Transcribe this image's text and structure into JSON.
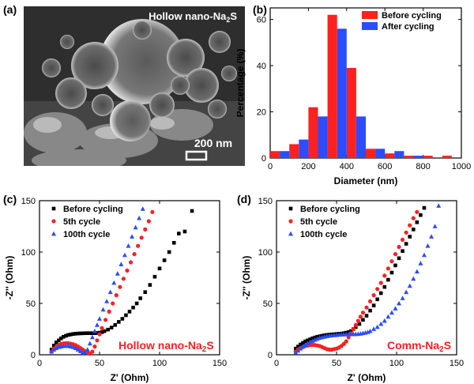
{
  "panels": {
    "a": "(a)",
    "b": "(b)",
    "c": "(c)",
    "d": "(d)"
  },
  "sem": {
    "title_main": "Hollow nano-Na",
    "title_sub": "2",
    "title_end": "S",
    "scale_text": "200 nm"
  },
  "colors": {
    "red": "#ff2020",
    "blue": "#2b4cff",
    "black": "#000000"
  },
  "chart_data": [
    {
      "id": "b",
      "type": "bar",
      "xlabel": "Diameter (nm)",
      "ylabel": "Percentage (%)",
      "xlim": [
        0,
        1000
      ],
      "ylim": [
        0,
        65
      ],
      "xticks": [
        0,
        200,
        400,
        600,
        800,
        1000
      ],
      "yticks": [
        0,
        20,
        40,
        60
      ],
      "bin_width": 50,
      "legend_position": "top-right",
      "series": [
        {
          "name": "Before cycling",
          "color": "#ff2020",
          "x": [
            25,
            125,
            225,
            325,
            425,
            525,
            625,
            725,
            825,
            925
          ],
          "values": [
            3,
            6,
            22,
            62,
            39,
            4,
            2,
            1,
            1,
            1
          ]
        },
        {
          "name": "After cycling",
          "color": "#2b4cff",
          "x": [
            75,
            175,
            275,
            375,
            475,
            575,
            675,
            775,
            875,
            975
          ],
          "values": [
            3,
            8,
            18,
            56,
            18,
            4,
            3,
            1,
            0,
            0
          ]
        }
      ]
    },
    {
      "id": "c",
      "type": "scatter",
      "xlabel": "Z' (Ohm)",
      "ylabel": "-Z'' (Ohm)",
      "xlim": [
        0,
        150
      ],
      "ylim": [
        0,
        150
      ],
      "xticks": [
        0,
        50,
        100,
        150
      ],
      "yticks": [
        0,
        50,
        100,
        150
      ],
      "annotation": {
        "main": "Hollow nano-Na",
        "sub": "2",
        "end": "S"
      },
      "legend_position": "top-left",
      "series": [
        {
          "name": "Before cycling",
          "marker": "square",
          "color": "#000000",
          "x": [
            10,
            12,
            14,
            16,
            18,
            20,
            22,
            24,
            26,
            28,
            30,
            32,
            34,
            36,
            38,
            40,
            42,
            44,
            46,
            48,
            50,
            52,
            54,
            57,
            60,
            63,
            66,
            69,
            72,
            75,
            78,
            81,
            84,
            88,
            92,
            96,
            100,
            104,
            108,
            112,
            116,
            121,
            127
          ],
          "y": [
            5,
            9,
            12,
            14,
            16,
            17.5,
            18.5,
            19.3,
            19.8,
            20.2,
            20.5,
            20.7,
            20.8,
            20.9,
            21,
            21,
            21,
            21,
            21,
            21.2,
            21.5,
            22,
            23,
            24.5,
            26.5,
            29,
            32,
            35,
            38.5,
            42,
            46,
            50,
            55,
            61,
            68,
            76,
            84,
            92,
            100,
            109,
            118,
            120,
            140
          ]
        },
        {
          "name": "5th cycle",
          "marker": "circle",
          "color": "#ff2020",
          "x": [
            10,
            12,
            14,
            16,
            18,
            20,
            22,
            24,
            26,
            28,
            30,
            32,
            34,
            36,
            38,
            40,
            42,
            44,
            46,
            48,
            50,
            52,
            55,
            58,
            61,
            64,
            67,
            70,
            73,
            76,
            79,
            82,
            85,
            88,
            91,
            94
          ],
          "y": [
            3,
            6,
            8,
            9.5,
            10.5,
            11,
            11.3,
            11.2,
            10.8,
            10.2,
            9.3,
            8,
            6.5,
            5,
            3.5,
            2,
            1,
            3,
            8,
            14,
            20,
            26,
            34,
            42,
            50,
            58,
            66,
            74,
            82,
            90,
            98,
            106,
            114,
            122,
            130,
            139
          ]
        },
        {
          "name": "100th cycle",
          "marker": "triangle",
          "color": "#2b4cff",
          "x": [
            10,
            12,
            14,
            16,
            18,
            20,
            22,
            24,
            26,
            28,
            30,
            32,
            34,
            36,
            38,
            40,
            42,
            44,
            46,
            48,
            50,
            53,
            56,
            59,
            62,
            65,
            68,
            71,
            74,
            77,
            80,
            83,
            86
          ],
          "y": [
            3,
            5,
            6.5,
            7.5,
            8,
            8.5,
            8.6,
            8.5,
            8,
            7.5,
            6.5,
            5,
            3.5,
            2,
            2,
            5,
            11,
            17,
            23,
            29,
            35,
            44,
            52,
            61,
            70,
            79,
            88,
            97,
            106,
            115,
            124,
            133,
            142
          ]
        }
      ]
    },
    {
      "id": "d",
      "type": "scatter",
      "xlabel": "Z' (Ohm)",
      "ylabel": "-Z'' (Ohm)",
      "xlim": [
        0,
        150
      ],
      "ylim": [
        0,
        150
      ],
      "xticks": [
        0,
        50,
        100,
        150
      ],
      "yticks": [
        0,
        50,
        100,
        150
      ],
      "annotation": {
        "main": "Comm-Na",
        "sub": "2",
        "end": "S"
      },
      "legend_position": "top-left",
      "series": [
        {
          "name": "Before cycling",
          "marker": "square",
          "color": "#000000",
          "x": [
            16,
            18,
            20,
            22,
            24,
            26,
            28,
            30,
            32,
            34,
            36,
            38,
            40,
            42,
            44,
            46,
            48,
            50,
            52,
            54,
            56,
            58,
            60,
            62,
            64,
            66,
            69,
            72,
            75,
            78,
            81,
            84,
            87,
            90,
            93,
            96,
            99,
            102,
            105,
            108,
            111,
            114,
            117,
            120,
            123
          ],
          "y": [
            6,
            8,
            10,
            11.5,
            13,
            14,
            15,
            16,
            16.8,
            17.5,
            18,
            18.5,
            19,
            19.3,
            19.6,
            19.8,
            20,
            20.2,
            20.4,
            20.6,
            21,
            21.5,
            22,
            23,
            25,
            27,
            30,
            34,
            38,
            43,
            48,
            54,
            60,
            66,
            73,
            80,
            87,
            94,
            101,
            108,
            115,
            122,
            129,
            136,
            143
          ]
        },
        {
          "name": "5th cycle",
          "marker": "circle",
          "color": "#ff2020",
          "x": [
            16,
            18,
            20,
            22,
            24,
            26,
            28,
            30,
            32,
            34,
            36,
            38,
            40,
            42,
            44,
            46,
            48,
            50,
            52,
            54,
            56,
            58,
            60,
            62,
            64,
            66,
            68,
            70,
            72,
            75,
            78,
            81,
            84,
            87,
            90,
            93,
            96,
            99,
            102,
            105,
            108,
            111,
            114,
            117
          ],
          "y": [
            3,
            5,
            6.5,
            7.5,
            8.5,
            9,
            9.5,
            9.7,
            9.5,
            9,
            8.5,
            7.5,
            6.5,
            5.5,
            5,
            5,
            5.5,
            6,
            7,
            8.5,
            10.5,
            13,
            17,
            21,
            25,
            29,
            33,
            37,
            41,
            46,
            52,
            58,
            64,
            70,
            77,
            84,
            91,
            98,
            105,
            112,
            119,
            126,
            133,
            139
          ]
        },
        {
          "name": "100th cycle",
          "marker": "triangle",
          "color": "#2b4cff",
          "x": [
            16,
            18,
            20,
            22,
            24,
            26,
            28,
            30,
            32,
            34,
            36,
            38,
            40,
            42,
            44,
            46,
            48,
            50,
            52,
            54,
            56,
            58,
            60,
            62,
            64,
            66,
            68,
            70,
            72,
            74,
            76,
            78,
            81,
            84,
            87,
            90,
            93,
            96,
            99,
            102,
            105,
            108,
            111,
            114,
            117,
            120,
            123,
            126,
            129,
            132,
            135
          ],
          "y": [
            2,
            4,
            6,
            8,
            9.5,
            11,
            12.5,
            13.5,
            14.5,
            15.5,
            16.5,
            17,
            17.5,
            18,
            18.5,
            18.8,
            19,
            19.2,
            19.4,
            19.6,
            19.7,
            19.8,
            19.9,
            20,
            20,
            20,
            20.2,
            20.5,
            21,
            21.5,
            22,
            23,
            25,
            27,
            30,
            33,
            37,
            41,
            45,
            50,
            55,
            61,
            67,
            74,
            81,
            89,
            97,
            106,
            115,
            125,
            145
          ]
        }
      ]
    }
  ]
}
